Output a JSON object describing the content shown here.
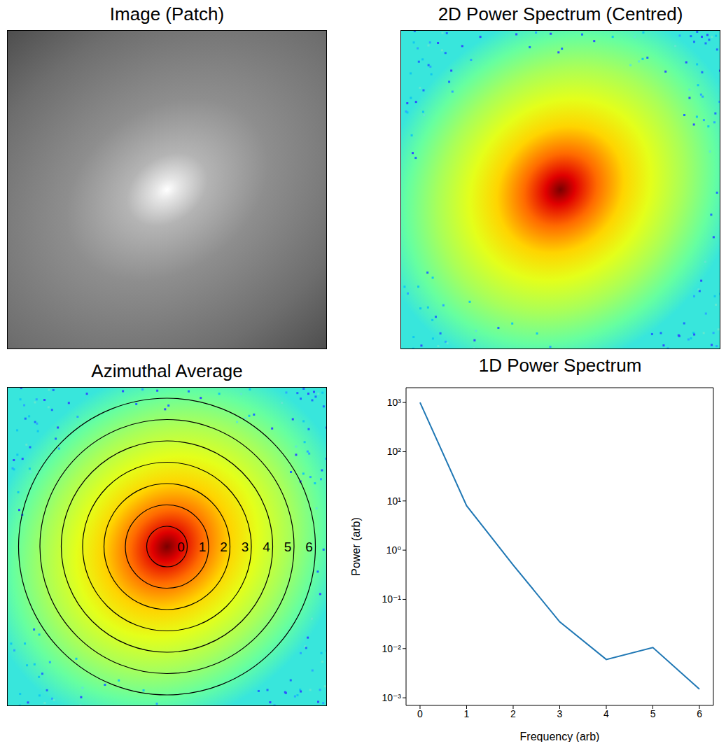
{
  "chart_data": [
    {
      "type": "image",
      "title": "Image (Patch)",
      "color": "gray"
    },
    {
      "type": "image",
      "title": "2D Power Spectrum (Centred)",
      "color": "jet"
    },
    {
      "type": "image",
      "title": "Azimuthal Average",
      "color": "jet",
      "ring_labels": [
        0,
        1,
        2,
        3,
        4,
        5,
        6
      ]
    },
    {
      "type": "line",
      "title": "1D Power Spectrum",
      "x_label": "Frequency (arb)",
      "y_label": "Power (arb)",
      "x": [
        0,
        1,
        2,
        3,
        4,
        5,
        6
      ],
      "values": [
        1000,
        8,
        0.5,
        0.035,
        0.006,
        0.0105,
        0.0015
      ],
      "color": "#1f77b4",
      "log": "y",
      "xlim": [
        -0.3,
        6.3
      ],
      "xticks": [
        0,
        1,
        2,
        3,
        4,
        5,
        6
      ],
      "ylim": [
        0.0007,
        2000
      ],
      "yticks": [
        {
          "value": 0.001,
          "label": "10⁻³"
        },
        {
          "value": 0.01,
          "label": "10⁻²"
        },
        {
          "value": 0.1,
          "label": "10⁻¹"
        },
        {
          "value": 1,
          "label": "10⁰"
        },
        {
          "value": 10,
          "label": "10¹"
        },
        {
          "value": 100,
          "label": "10²"
        },
        {
          "value": 1000,
          "label": "10³"
        }
      ]
    }
  ]
}
